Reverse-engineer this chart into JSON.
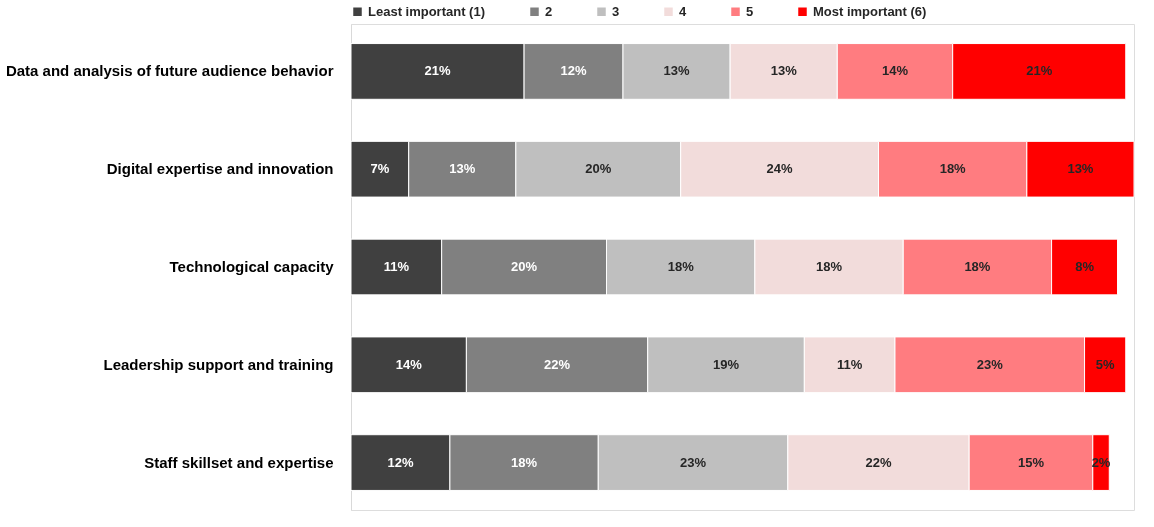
{
  "chart_data": {
    "type": "bar",
    "orientation": "horizontal",
    "stacked": true,
    "legend": "top",
    "grid": false,
    "categories": [
      "Data and analysis of future audience behavior",
      "Digital expertise and innovation",
      "Technological capacity",
      "Leadership support and training",
      "Staff skillset and expertise"
    ],
    "series": [
      {
        "name": "Least important (1)",
        "color": "#404040",
        "values": [
          21,
          7,
          11,
          14,
          12
        ],
        "value_labels": [
          "21%",
          "7%",
          "11%",
          "14%",
          "12%"
        ]
      },
      {
        "name": "2",
        "color": "#808080",
        "values": [
          12,
          13,
          20,
          22,
          18
        ],
        "value_labels": [
          "12%",
          "13%",
          "20%",
          "22%",
          "18%"
        ]
      },
      {
        "name": "3",
        "color": "#bfbfbf",
        "values": [
          13,
          20,
          18,
          19,
          23
        ],
        "value_labels": [
          "13%",
          "20%",
          "18%",
          "19%",
          "23%"
        ]
      },
      {
        "name": "4",
        "color": "#f2dcdb",
        "values": [
          13,
          24,
          18,
          11,
          22
        ],
        "value_labels": [
          "13%",
          "24%",
          "18%",
          "11%",
          "22%"
        ]
      },
      {
        "name": "5",
        "color": "#ff7c80",
        "values": [
          14,
          18,
          18,
          23,
          15
        ],
        "value_labels": [
          "14%",
          "18%",
          "18%",
          "23%",
          "15%"
        ]
      },
      {
        "name": "Most important (6)",
        "color": "#ff0000",
        "values": [
          21,
          13,
          8,
          5,
          2
        ],
        "value_labels": [
          "21%",
          "13%",
          "8%",
          "5%",
          "2%"
        ]
      }
    ]
  }
}
